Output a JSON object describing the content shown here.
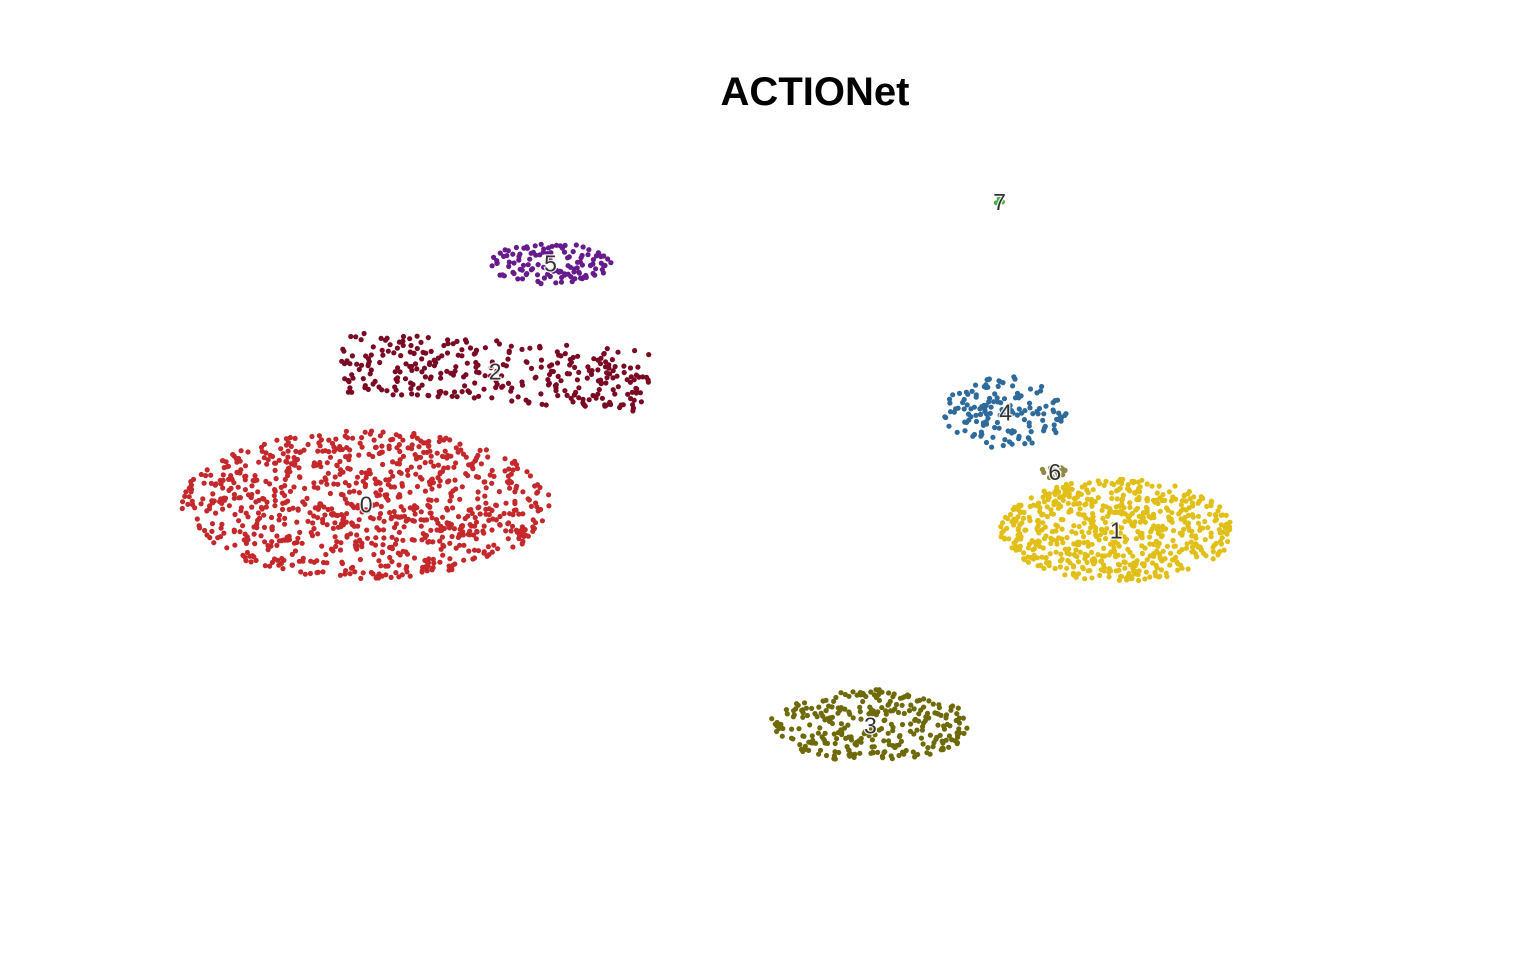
{
  "chart_data": {
    "type": "scatter",
    "title": "ACTIONet",
    "xlabel": "",
    "ylabel": "",
    "axes_visible": false,
    "grid": false,
    "legend": "none",
    "clusters": [
      {
        "label": "0",
        "color": "#c4282b",
        "center": [
          -3.65,
          -0.15
        ],
        "spread": [
          1.5,
          0.72
        ],
        "n": 900,
        "shape": "ellipse"
      },
      {
        "label": "1",
        "color": "#e1bf17",
        "center": [
          2.45,
          -0.4
        ],
        "spread": [
          0.95,
          0.5
        ],
        "n": 650,
        "shape": "ellipse"
      },
      {
        "label": "2",
        "color": "#7a0a23",
        "center": [
          -2.6,
          1.15
        ],
        "spread": [
          1.25,
          0.3
        ],
        "n": 320,
        "shape": "band"
      },
      {
        "label": "3",
        "color": "#6e6a0a",
        "center": [
          0.45,
          -2.3
        ],
        "spread": [
          0.82,
          0.35
        ],
        "n": 300,
        "shape": "ellipse"
      },
      {
        "label": "4",
        "color": "#2e6a9b",
        "center": [
          1.55,
          0.75
        ],
        "spread": [
          0.5,
          0.35
        ],
        "n": 150,
        "shape": "ellipse"
      },
      {
        "label": "5",
        "color": "#661a8c",
        "center": [
          -2.15,
          2.2
        ],
        "spread": [
          0.5,
          0.2
        ],
        "n": 120,
        "shape": "ellipse"
      },
      {
        "label": "6",
        "color": "#8f8a44",
        "center": [
          1.95,
          0.17
        ],
        "spread": [
          0.12,
          0.06
        ],
        "n": 14,
        "shape": "ellipse"
      },
      {
        "label": "7",
        "color": "#4aac48",
        "center": [
          1.5,
          2.8
        ],
        "spread": [
          0.04,
          0.03
        ],
        "n": 5,
        "shape": "ellipse"
      }
    ],
    "xlim": [
      -5,
      5
    ],
    "ylim": [
      -4,
      3.5
    ]
  }
}
